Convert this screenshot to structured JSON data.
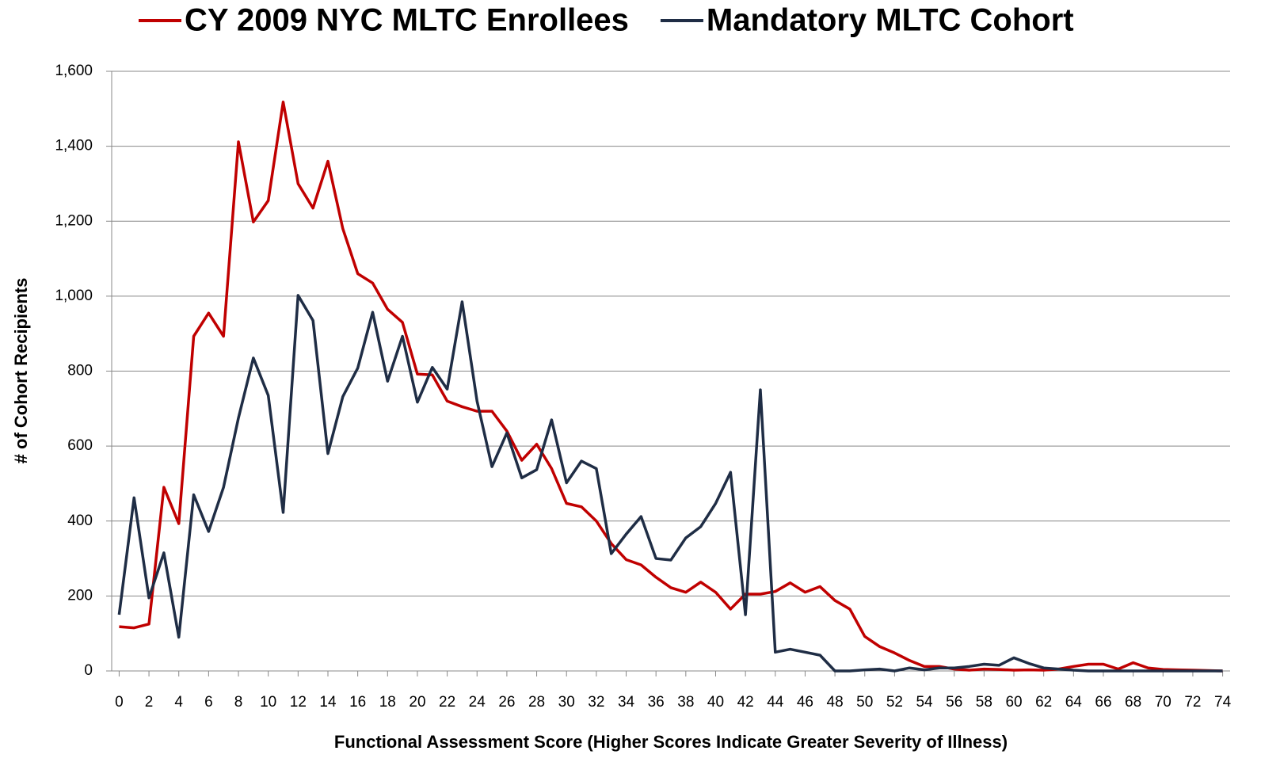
{
  "chart_data": {
    "type": "line",
    "x_label": "Functional Assessment Score (Higher Scores Indicate Greater Severity of Illness)",
    "y_label": "# of Cohort Recipients",
    "x": [
      0,
      1,
      2,
      3,
      4,
      5,
      6,
      7,
      8,
      9,
      10,
      11,
      12,
      13,
      14,
      15,
      16,
      17,
      18,
      19,
      20,
      21,
      22,
      23,
      24,
      25,
      26,
      27,
      28,
      29,
      30,
      31,
      32,
      33,
      34,
      35,
      36,
      37,
      38,
      39,
      40,
      41,
      42,
      43,
      44,
      45,
      46,
      47,
      48,
      49,
      50,
      51,
      52,
      53,
      54,
      55,
      56,
      57,
      58,
      59,
      60,
      61,
      62,
      63,
      64,
      65,
      66,
      67,
      68,
      69,
      70,
      71,
      72,
      73,
      74
    ],
    "series": [
      {
        "name": "CY 2009 NYC MLTC Enrollees",
        "color": "#c00000",
        "values": [
          118,
          115,
          125,
          490,
          393,
          893,
          955,
          893,
          1412,
          1198,
          1255,
          1518,
          1300,
          1235,
          1360,
          1180,
          1060,
          1035,
          965,
          930,
          792,
          790,
          720,
          705,
          693,
          693,
          640,
          562,
          605,
          540,
          447,
          438,
          400,
          340,
          297,
          283,
          250,
          222,
          210,
          237,
          210,
          165,
          205,
          205,
          212,
          235,
          210,
          225,
          188,
          165,
          92,
          65,
          48,
          28,
          12,
          12,
          5,
          2,
          5,
          4,
          2,
          3,
          2,
          5,
          12,
          18,
          18,
          5,
          22,
          8,
          4,
          3,
          2,
          1,
          0
        ]
      },
      {
        "name": "Mandatory MLTC Cohort",
        "color": "#1f2d45",
        "values": [
          150,
          462,
          195,
          315,
          90,
          470,
          372,
          490,
          675,
          835,
          735,
          423,
          1002,
          935,
          580,
          732,
          808,
          957,
          773,
          893,
          717,
          810,
          752,
          985,
          720,
          545,
          635,
          515,
          537,
          670,
          502,
          560,
          540,
          313,
          365,
          412,
          300,
          296,
          355,
          385,
          447,
          530,
          150,
          750,
          50,
          58,
          50,
          42,
          0,
          0,
          3,
          5,
          0,
          8,
          3,
          8,
          8,
          12,
          18,
          15,
          35,
          20,
          8,
          5,
          2,
          0,
          0,
          0,
          0,
          0,
          0,
          0,
          0,
          0,
          0
        ]
      }
    ],
    "xlim": [
      -0.5,
      74.5
    ],
    "xticks": [
      0,
      2,
      4,
      6,
      8,
      10,
      12,
      14,
      16,
      18,
      20,
      22,
      24,
      26,
      28,
      30,
      32,
      34,
      36,
      38,
      40,
      42,
      44,
      46,
      48,
      50,
      52,
      54,
      56,
      58,
      60,
      62,
      64,
      66,
      68,
      70,
      72,
      74
    ],
    "ylim": [
      0,
      1600
    ],
    "yticks": [
      0,
      {
        "value": 200,
        "label": "200"
      },
      400,
      600,
      800,
      {
        "value": 1000,
        "label": "1,000"
      },
      {
        "value": 1200,
        "label": "1,200"
      },
      {
        "value": 1400,
        "label": "1,400"
      },
      {
        "value": 1600,
        "label": "1,600"
      }
    ],
    "grid": true,
    "legend": "top"
  }
}
